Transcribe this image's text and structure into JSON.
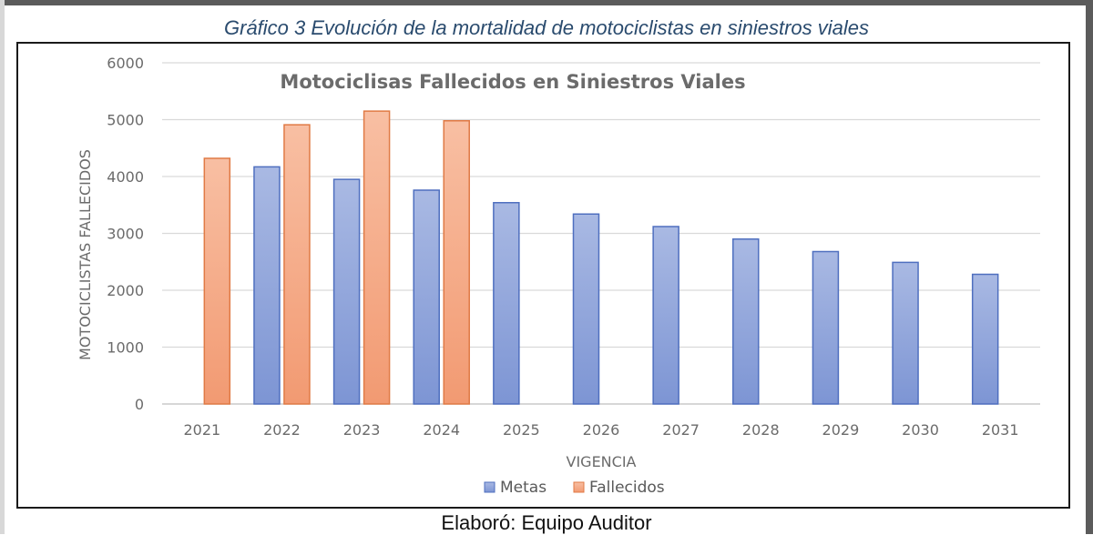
{
  "figure_title": "Gráfico 3 Evolución de la mortalidad de motociclistas en siniestros viales",
  "caption": "Elaboró: Equipo Auditor",
  "chart_data": {
    "type": "bar",
    "title": "Motociclisas Fallecidos en Siniestros Viales",
    "xlabel": "VIGENCIA",
    "ylabel": "MOTOCICLISTAS FALLECIDOS",
    "ylim": [
      0,
      6000
    ],
    "yticks": [
      0,
      1000,
      2000,
      3000,
      4000,
      5000,
      6000
    ],
    "grid": true,
    "legend_position": "bottom",
    "categories": [
      "2021",
      "2022",
      "2023",
      "2024",
      "2025",
      "2026",
      "2027",
      "2028",
      "2029",
      "2030",
      "2031"
    ],
    "series": [
      {
        "name": "Metas",
        "color": "#8ea3d9",
        "values": [
          null,
          4170,
          3950,
          3760,
          3540,
          3340,
          3120,
          2900,
          2680,
          2490,
          2280
        ]
      },
      {
        "name": "Fallecidos",
        "color": "#f4a682",
        "values": [
          4320,
          4910,
          5150,
          4980,
          null,
          null,
          null,
          null,
          null,
          null,
          null
        ]
      }
    ]
  }
}
